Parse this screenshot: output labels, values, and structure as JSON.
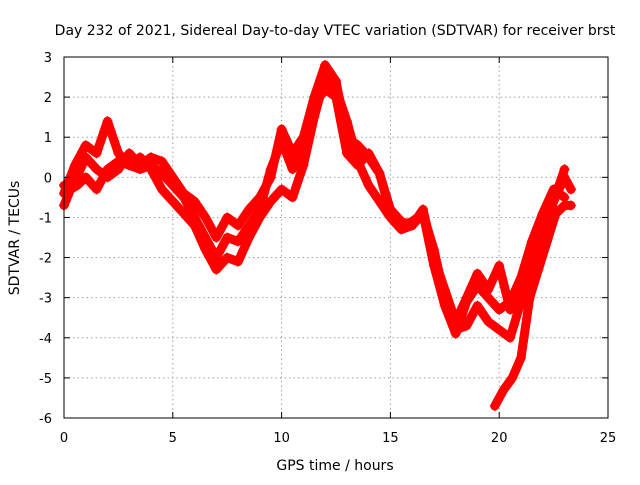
{
  "chart_data": {
    "type": "line",
    "title": "Day 232 of 2021, Sidereal Day-to-day VTEC variation (SDTVAR) for receiver brst",
    "xlabel": "GPS time / hours",
    "ylabel": "SDTVAR / TECUs",
    "xlim": [
      0,
      25
    ],
    "ylim": [
      -6,
      3
    ],
    "xticks": [
      0,
      5,
      10,
      15,
      20,
      25
    ],
    "yticks": [
      -6,
      -5,
      -4,
      -3,
      -2,
      -1,
      0,
      1,
      2,
      3
    ],
    "grid": true,
    "marker": "+",
    "color": "#ff0000",
    "series": [
      {
        "name": "series-1",
        "x": [
          0,
          0.3,
          0.6,
          1.0,
          1.5,
          2.0,
          2.5,
          3.0,
          3.5,
          4.0,
          4.5,
          5.0,
          5.5,
          6.0,
          6.5,
          7.0,
          7.5,
          8.0,
          8.5,
          9.0,
          9.5,
          10.0,
          10.5,
          11.0,
          11.5,
          12.0,
          12.5,
          13.0,
          13.5,
          14.0,
          14.5,
          15.0,
          15.5,
          16.0,
          16.5,
          17.0,
          17.5,
          18.0,
          18.5,
          19.0,
          19.5,
          20.0,
          20.5,
          21.0,
          21.5,
          22.0,
          22.5,
          23.0,
          23.3
        ],
        "y": [
          -0.7,
          -0.3,
          -0.2,
          0.0,
          -0.3,
          0.2,
          0.4,
          0.3,
          0.5,
          0.2,
          -0.3,
          -0.6,
          -0.9,
          -1.2,
          -1.8,
          -2.3,
          -2.0,
          -2.1,
          -1.5,
          -1.0,
          -0.6,
          -0.3,
          -0.5,
          0.3,
          1.5,
          2.5,
          2.2,
          1.4,
          0.4,
          -0.2,
          -0.6,
          -1.0,
          -1.3,
          -1.2,
          -0.9,
          -1.8,
          -3.0,
          -3.8,
          -3.7,
          -3.2,
          -3.6,
          -3.8,
          -4.0,
          -3.1,
          -2.2,
          -1.5,
          -0.6,
          0.0,
          -0.3
        ]
      },
      {
        "name": "series-2",
        "x": [
          0,
          0.5,
          1.0,
          1.5,
          2.0,
          2.5,
          3.0,
          3.5,
          4.0,
          4.5,
          5.0,
          5.5,
          6.0,
          6.5,
          7.0,
          7.5,
          8.0,
          8.5,
          9.0,
          9.5,
          10.0,
          10.5,
          11.0,
          11.5,
          12.0,
          12.5,
          13.0,
          13.5,
          14.0,
          14.5,
          15.0,
          15.5,
          16.0,
          16.5,
          17.0,
          17.5,
          18.0,
          18.5,
          19.0,
          19.5,
          20.0,
          20.5,
          21.0,
          21.5,
          22.0,
          22.5,
          23.0
        ],
        "y": [
          -0.4,
          0.3,
          0.8,
          0.6,
          1.4,
          0.6,
          0.3,
          0.2,
          0.3,
          0.1,
          -0.2,
          -0.5,
          -1.0,
          -1.5,
          -2.0,
          -1.5,
          -1.6,
          -1.2,
          -0.8,
          0.2,
          0.9,
          0.2,
          0.8,
          1.8,
          2.2,
          2.0,
          0.6,
          0.3,
          0.6,
          0.1,
          -0.9,
          -1.2,
          -1.1,
          -0.9,
          -2.2,
          -3.2,
          -3.9,
          -3.1,
          -2.7,
          -3.0,
          -3.3,
          -3.1,
          -2.5,
          -1.6,
          -0.9,
          -0.3,
          -0.5
        ]
      },
      {
        "name": "series-3",
        "x": [
          0,
          0.5,
          1.0,
          1.5,
          2.0,
          2.5,
          3.0,
          3.5,
          4.0,
          4.5,
          5.0,
          5.5,
          6.0,
          6.5,
          7.0,
          7.5,
          8.0,
          8.5,
          9.0,
          9.5,
          10.0,
          10.5,
          11.0,
          11.5,
          12.0,
          12.5,
          13.0,
          13.5,
          14.0,
          14.5,
          15.0,
          15.5,
          16.0,
          16.5,
          17.0,
          17.5,
          18.0,
          18.5,
          19.0,
          19.5,
          20.0,
          20.5,
          21.0,
          21.5,
          22.0,
          22.5,
          23.0
        ],
        "y": [
          -0.2,
          -0.1,
          0.5,
          0.2,
          0.0,
          0.2,
          0.6,
          0.3,
          0.5,
          0.4,
          0.0,
          -0.4,
          -0.6,
          -1.0,
          -1.5,
          -1.0,
          -1.2,
          -0.8,
          -0.5,
          0.0,
          1.2,
          0.6,
          1.0,
          2.0,
          2.8,
          2.4,
          1.0,
          0.8,
          0.5,
          0.1,
          -0.8,
          -1.1,
          -1.2,
          -0.8,
          -2.0,
          -2.8,
          -3.6,
          -3.0,
          -2.4,
          -2.8,
          -2.2,
          -3.3,
          -3.0,
          -2.0,
          -1.2,
          -0.6,
          0.2
        ]
      },
      {
        "name": "series-4",
        "x": [
          19.8,
          20.2,
          20.6,
          21.0,
          21.4,
          21.8,
          22.2,
          22.6,
          23.0,
          23.3
        ],
        "y": [
          -5.7,
          -5.3,
          -5.0,
          -4.5,
          -3.0,
          -2.3,
          -1.6,
          -0.9,
          -0.7,
          -0.7
        ]
      }
    ]
  }
}
